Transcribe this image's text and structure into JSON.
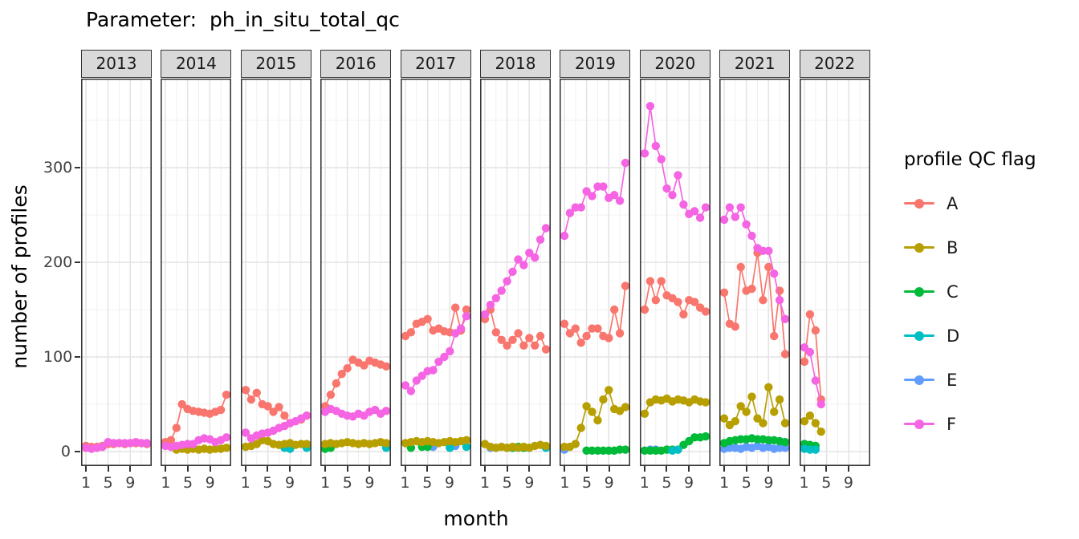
{
  "title": "Parameter:  ph_in_situ_total_qc",
  "x_axis": {
    "label": "month",
    "ticks": [
      1,
      5,
      9
    ]
  },
  "y_axis": {
    "label": "number of profiles",
    "ticks": [
      0,
      100,
      200,
      300
    ]
  },
  "legend": {
    "title": "profile QC flag",
    "entries": [
      {
        "label": "A",
        "color": "#F8766D"
      },
      {
        "label": "B",
        "color": "#B79F00"
      },
      {
        "label": "C",
        "color": "#00BA38"
      },
      {
        "label": "D",
        "color": "#00BFC4"
      },
      {
        "label": "E",
        "color": "#619CFF"
      },
      {
        "label": "F",
        "color": "#F564E3"
      }
    ]
  },
  "chart_data": {
    "type": "line",
    "xlabel": "month",
    "ylabel": "number of profiles",
    "x_range": [
      1,
      12
    ],
    "y_range": [
      0,
      390
    ],
    "x_major_grid": [
      1,
      5,
      9
    ],
    "x_minor_grid": [
      3,
      7,
      11
    ],
    "y_major_grid": [
      0,
      100,
      200,
      300
    ],
    "y_minor_grid": [
      50,
      150,
      250,
      350
    ],
    "legend_position": "right",
    "series_colors": {
      "A": "#F8766D",
      "B": "#B79F00",
      "C": "#00BA38",
      "D": "#00BFC4",
      "E": "#619CFF",
      "F": "#F564E3"
    },
    "draw_order": [
      "E",
      "C",
      "D",
      "B",
      "A",
      "F"
    ],
    "facets": [
      {
        "year": "2013",
        "series": {
          "A": [
            6,
            5,
            5,
            6,
            8,
            8,
            9,
            8,
            9,
            9,
            9,
            8
          ],
          "F": [
            4,
            3,
            4,
            5,
            10,
            9,
            9,
            9,
            9,
            10,
            9,
            9
          ]
        }
      },
      {
        "year": "2014",
        "series": {
          "A": [
            10,
            12,
            25,
            50,
            45,
            43,
            42,
            41,
            40,
            42,
            44,
            60
          ],
          "B": [
            null,
            null,
            2,
            3,
            2,
            3,
            2,
            3,
            2,
            3,
            3,
            4
          ],
          "F": [
            6,
            5,
            6,
            7,
            8,
            8,
            12,
            14,
            13,
            10,
            12,
            15
          ]
        }
      },
      {
        "year": "2015",
        "series": {
          "A": [
            65,
            55,
            62,
            50,
            48,
            42,
            47,
            38,
            30,
            32,
            34,
            38
          ],
          "B": [
            5,
            6,
            8,
            12,
            11,
            8,
            7,
            8,
            9,
            7,
            8,
            8
          ],
          "D": [
            null,
            null,
            null,
            null,
            null,
            null,
            null,
            4,
            3,
            null,
            null,
            4
          ],
          "F": [
            20,
            14,
            17,
            19,
            20,
            22,
            25,
            27,
            30,
            32,
            35,
            38
          ]
        }
      },
      {
        "year": "2016",
        "series": {
          "A": [
            48,
            60,
            72,
            82,
            88,
            97,
            94,
            91,
            96,
            94,
            92,
            90
          ],
          "B": [
            8,
            9,
            8,
            9,
            10,
            9,
            8,
            9,
            8,
            9,
            10,
            9
          ],
          "C": [
            3,
            4,
            null,
            null,
            null,
            null,
            null,
            null,
            null,
            null,
            null,
            null
          ],
          "D": [
            null,
            null,
            null,
            null,
            null,
            null,
            null,
            null,
            null,
            null,
            null,
            4
          ],
          "F": [
            42,
            45,
            43,
            40,
            38,
            37,
            40,
            38,
            42,
            44,
            40,
            43
          ]
        }
      },
      {
        "year": "2017",
        "series": {
          "A": [
            122,
            126,
            135,
            137,
            140,
            128,
            130,
            127,
            126,
            152,
            128,
            150
          ],
          "B": [
            9,
            10,
            11,
            10,
            11,
            10,
            9,
            10,
            11,
            10,
            11,
            12
          ],
          "C": [
            null,
            4,
            null,
            5,
            5,
            null,
            null,
            null,
            null,
            null,
            null,
            null
          ],
          "D": [
            null,
            null,
            null,
            null,
            null,
            null,
            null,
            null,
            4,
            null,
            null,
            5
          ],
          "E": [
            null,
            null,
            null,
            null,
            5,
            5,
            null,
            null,
            null,
            6,
            null,
            null
          ],
          "F": [
            70,
            64,
            75,
            80,
            85,
            86,
            95,
            100,
            106,
            125,
            130,
            143
          ]
        }
      },
      {
        "year": "2018",
        "series": {
          "A": [
            140,
            150,
            126,
            118,
            112,
            118,
            125,
            112,
            120,
            112,
            122,
            108
          ],
          "B": [
            8,
            5,
            4,
            5,
            4,
            5,
            4,
            5,
            4,
            6,
            7,
            6
          ],
          "C": [
            null,
            null,
            null,
            null,
            null,
            4,
            5,
            4,
            4,
            null,
            null,
            null
          ],
          "D": [
            null,
            null,
            null,
            null,
            4,
            null,
            null,
            null,
            null,
            null,
            null,
            4
          ],
          "E": [
            null,
            4,
            4,
            null,
            null,
            null,
            null,
            null,
            null,
            null,
            null,
            null
          ],
          "F": [
            145,
            155,
            162,
            170,
            180,
            190,
            203,
            197,
            210,
            205,
            224,
            236
          ]
        }
      },
      {
        "year": "2019",
        "series": {
          "A": [
            135,
            125,
            130,
            115,
            122,
            130,
            130,
            122,
            120,
            150,
            125,
            175
          ],
          "B": [
            5,
            5,
            8,
            25,
            48,
            42,
            33,
            55,
            65,
            45,
            43,
            47
          ],
          "C": [
            null,
            null,
            null,
            null,
            1,
            1,
            1,
            1,
            1,
            1,
            2,
            2
          ],
          "E": [
            2,
            null,
            null,
            null,
            null,
            null,
            null,
            null,
            null,
            null,
            null,
            null
          ],
          "F": [
            228,
            252,
            258,
            258,
            275,
            270,
            280,
            280,
            268,
            271,
            265,
            305
          ]
        }
      },
      {
        "year": "2020",
        "series": {
          "A": [
            150,
            180,
            160,
            180,
            165,
            162,
            158,
            145,
            160,
            158,
            152,
            148
          ],
          "B": [
            40,
            52,
            55,
            54,
            56,
            53,
            55,
            54,
            52,
            55,
            53,
            52
          ],
          "C": [
            1,
            1,
            1,
            1,
            2,
            2,
            2,
            7,
            11,
            15,
            15,
            16
          ],
          "D": [
            null,
            null,
            null,
            null,
            null,
            1,
            2,
            null,
            null,
            null,
            null,
            null
          ],
          "E": [
            null,
            2,
            2,
            null,
            2,
            null,
            null,
            null,
            null,
            null,
            null,
            null
          ],
          "F": [
            315,
            365,
            323,
            309,
            278,
            271,
            292,
            261,
            251,
            254,
            247,
            258
          ]
        }
      },
      {
        "year": "2021",
        "series": {
          "A": [
            168,
            135,
            132,
            195,
            170,
            172,
            210,
            160,
            195,
            122,
            170,
            103
          ],
          "B": [
            35,
            28,
            32,
            48,
            42,
            58,
            35,
            30,
            68,
            42,
            55,
            30
          ],
          "C": [
            9,
            11,
            12,
            13,
            13,
            14,
            13,
            13,
            12,
            12,
            11,
            10
          ],
          "E": [
            3,
            4,
            4,
            3,
            5,
            4,
            6,
            4,
            5,
            3,
            4,
            4
          ],
          "F": [
            245,
            258,
            248,
            258,
            240,
            228,
            215,
            212,
            212,
            188,
            160,
            140
          ]
        }
      },
      {
        "year": "2022",
        "series": {
          "A": [
            95,
            145,
            128,
            55
          ],
          "B": [
            32,
            38,
            30,
            21
          ],
          "C": [
            8,
            7,
            6
          ],
          "D": [
            3,
            2,
            2
          ],
          "F": [
            110,
            105,
            75,
            50
          ]
        }
      }
    ]
  }
}
